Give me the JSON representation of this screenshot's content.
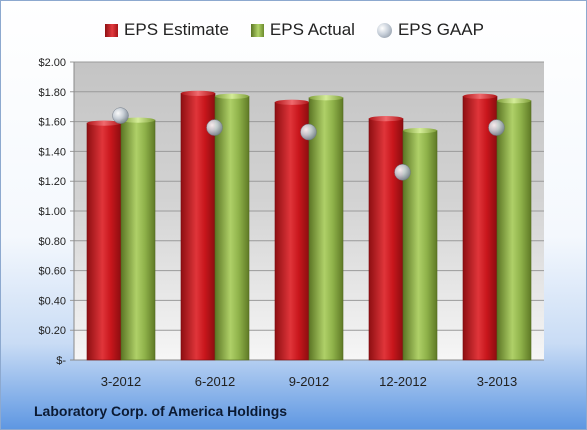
{
  "chart_data": {
    "type": "bar",
    "categories": [
      "3-2012",
      "6-2012",
      "9-2012",
      "12-2012",
      "3-2013"
    ],
    "series": [
      {
        "name": "EPS Estimate",
        "kind": "bar",
        "color": "#c8161c",
        "values": [
          1.59,
          1.79,
          1.73,
          1.62,
          1.77
        ]
      },
      {
        "name": "EPS Actual",
        "kind": "bar",
        "color": "#8fb24a",
        "values": [
          1.61,
          1.77,
          1.76,
          1.54,
          1.74
        ]
      },
      {
        "name": "EPS GAAP",
        "kind": "marker",
        "color": "#b9c2cc",
        "values": [
          1.64,
          1.56,
          1.53,
          1.26,
          1.56
        ]
      }
    ],
    "y_ticks": [
      "$-",
      "$0.20",
      "$0.40",
      "$0.60",
      "$0.80",
      "$1.00",
      "$1.20",
      "$1.40",
      "$1.60",
      "$1.80",
      "$2.00"
    ],
    "ylim": [
      0,
      2.0
    ],
    "grid": true,
    "legend_position": "top"
  },
  "footer_text": "Laboratory Corp. of America Holdings"
}
